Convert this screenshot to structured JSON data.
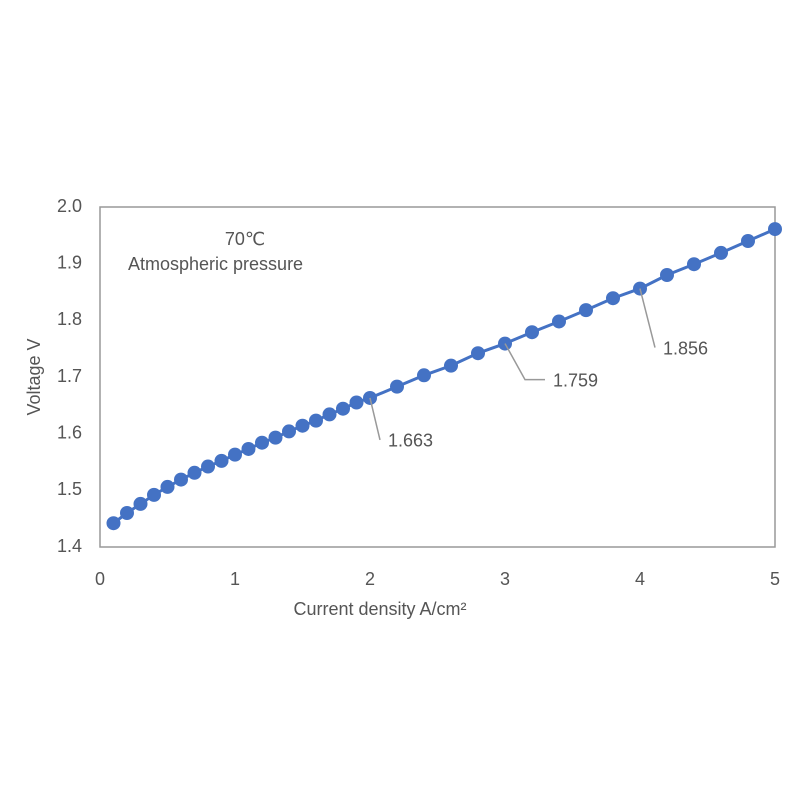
{
  "chart_data": {
    "type": "line",
    "x_label": "Current density A/cm²",
    "y_label": "Voltage V",
    "annotations": [
      "70℃",
      "Atmospheric pressure"
    ],
    "x": [
      0.1,
      0.2,
      0.3,
      0.4,
      0.5,
      0.6,
      0.7,
      0.8,
      0.9,
      1.0,
      1.1,
      1.2,
      1.3,
      1.4,
      1.5,
      1.6,
      1.7,
      1.8,
      1.9,
      2.0,
      2.2,
      2.4,
      2.6,
      2.8,
      3.0,
      3.2,
      3.4,
      3.6,
      3.8,
      4.0,
      4.2,
      4.4,
      4.6,
      4.8,
      5.0
    ],
    "series": [
      {
        "color": "#4472c4",
        "values": [
          1.442,
          1.46,
          1.476,
          1.492,
          1.506,
          1.519,
          1.531,
          1.542,
          1.552,
          1.563,
          1.573,
          1.584,
          1.593,
          1.604,
          1.614,
          1.623,
          1.634,
          1.644,
          1.655,
          1.663,
          1.683,
          1.703,
          1.72,
          1.742,
          1.759,
          1.779,
          1.798,
          1.818,
          1.839,
          1.856,
          1.88,
          1.899,
          1.919,
          1.94,
          1.961
        ],
        "value_labels": [
          null,
          null,
          null,
          null,
          null,
          null,
          null,
          null,
          null,
          null,
          null,
          null,
          null,
          null,
          null,
          null,
          null,
          null,
          null,
          "1.663",
          null,
          null,
          null,
          null,
          "1.759",
          null,
          null,
          null,
          null,
          "1.856",
          null,
          null,
          null,
          null,
          null
        ]
      }
    ],
    "xlim": [
      0,
      5
    ],
    "xticks": [
      0,
      1,
      2,
      3,
      4,
      5
    ],
    "ylim": [
      1.4,
      2.0
    ],
    "yticks": [
      1.4,
      1.5,
      1.6,
      1.7,
      1.8,
      1.9,
      {
        "value": 2,
        "label": "2.0"
      }
    ],
    "grid": false
  }
}
